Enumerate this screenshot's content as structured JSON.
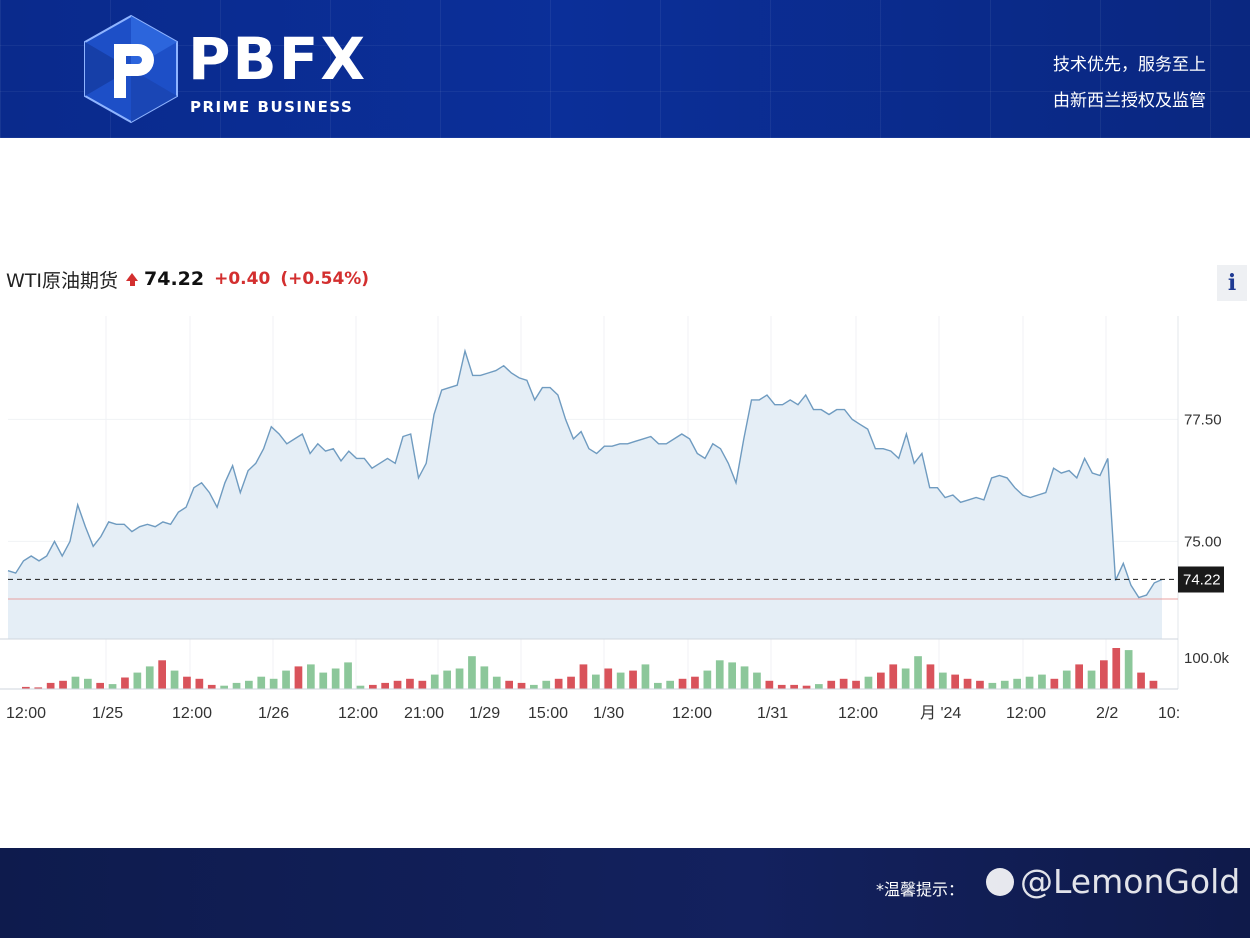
{
  "header": {
    "brand": "PBFX",
    "brand_sub": "PRIME BUSINESS",
    "slogan_line1": "技术优先，服务至上",
    "slogan_line2": "由新西兰授权及监管"
  },
  "quote": {
    "name": "WTI原油期货",
    "price": "74.22",
    "change": "+0.40",
    "change_pct": "(+0.54%)",
    "info_label": "i"
  },
  "footer": {
    "tip": "*温馨提示：",
    "watermark": "@LemonGold"
  },
  "colors": {
    "price_line": "#6f9bc0",
    "area_fill": "#e5eef6",
    "up_volume": "#8cc79a",
    "down_volume": "#d9535b",
    "prev_close": "#e8a0a0",
    "accent_red": "#d32f2f"
  },
  "chart_data": {
    "type": "area",
    "x_ticks": [
      "12:00",
      "1/25",
      "12:00",
      "1/26",
      "12:00",
      "21:00",
      "1/29",
      "15:00",
      "1/30",
      "12:00",
      "1/31",
      "12:00",
      "月 '24",
      "12:00",
      "2/2",
      "10:"
    ],
    "y_ticks": [
      "77.50",
      "75.00"
    ],
    "y_tick_values": [
      77.5,
      75.0
    ],
    "current_label": "74.22",
    "current_value": 74.22,
    "previous_close": 73.82,
    "ylim": [
      73.0,
      79.7
    ],
    "series": [
      {
        "values": [
          74.4,
          74.35,
          74.6,
          74.7,
          74.6,
          74.7,
          75.0,
          74.7,
          75.0,
          75.75,
          75.3,
          74.9,
          75.1,
          75.4,
          75.35,
          75.35,
          75.2,
          75.3,
          75.35,
          75.3,
          75.4,
          75.35,
          75.6,
          75.7,
          76.1,
          76.2,
          76.0,
          75.7,
          76.2,
          76.55,
          76.0,
          76.45,
          76.6,
          76.9,
          77.35,
          77.2,
          77.0,
          77.1,
          77.2,
          76.8,
          77.0,
          76.85,
          76.9,
          76.65,
          76.85,
          76.7,
          76.7,
          76.5,
          76.6,
          76.7,
          76.6,
          77.15,
          77.2,
          76.3,
          76.6,
          77.6,
          78.1,
          78.15,
          78.2,
          78.9,
          78.4,
          78.4,
          78.45,
          78.5,
          78.6,
          78.45,
          78.35,
          78.3,
          77.9,
          78.15,
          78.15,
          78.0,
          77.5,
          77.1,
          77.25,
          76.9,
          76.8,
          76.95,
          76.95,
          77.0,
          77.0,
          77.05,
          77.1,
          77.15,
          77.0,
          77.0,
          77.1,
          77.2,
          77.1,
          76.8,
          76.7,
          77.0,
          76.9,
          76.6,
          76.2,
          77.1,
          77.9,
          77.9,
          78.0,
          77.8,
          77.8,
          77.9,
          77.8,
          78.0,
          77.7,
          77.7,
          77.6,
          77.7,
          77.7,
          77.5,
          77.4,
          77.3,
          76.9,
          76.9,
          76.85,
          76.7,
          77.2,
          76.6,
          76.8,
          76.1,
          76.1,
          75.9,
          75.95,
          75.8,
          75.85,
          75.9,
          75.85,
          76.3,
          76.35,
          76.3,
          76.1,
          75.95,
          75.9,
          75.95,
          76.0,
          76.5,
          76.4,
          76.45,
          76.3,
          76.7,
          76.4,
          76.35,
          76.7,
          74.2,
          74.55,
          74.1,
          73.85,
          73.9,
          74.15,
          74.22
        ]
      }
    ],
    "volume_label": "100.0k",
    "volume_max": 100000,
    "volume": [
      {
        "v": 5000,
        "up": false
      },
      {
        "v": 4000,
        "up": false
      },
      {
        "v": 15000,
        "up": false
      },
      {
        "v": 20000,
        "up": false
      },
      {
        "v": 30000,
        "up": true
      },
      {
        "v": 25000,
        "up": true
      },
      {
        "v": 15000,
        "up": false
      },
      {
        "v": 12000,
        "up": true
      },
      {
        "v": 28000,
        "up": false
      },
      {
        "v": 40000,
        "up": true
      },
      {
        "v": 55000,
        "up": true
      },
      {
        "v": 70000,
        "up": false
      },
      {
        "v": 45000,
        "up": true
      },
      {
        "v": 30000,
        "up": false
      },
      {
        "v": 25000,
        "up": false
      },
      {
        "v": 10000,
        "up": false
      },
      {
        "v": 8000,
        "up": true
      },
      {
        "v": 15000,
        "up": true
      },
      {
        "v": 20000,
        "up": true
      },
      {
        "v": 30000,
        "up": true
      },
      {
        "v": 25000,
        "up": true
      },
      {
        "v": 45000,
        "up": true
      },
      {
        "v": 55000,
        "up": false
      },
      {
        "v": 60000,
        "up": true
      },
      {
        "v": 40000,
        "up": true
      },
      {
        "v": 50000,
        "up": true
      },
      {
        "v": 65000,
        "up": true
      },
      {
        "v": 8000,
        "up": true
      },
      {
        "v": 10000,
        "up": false
      },
      {
        "v": 15000,
        "up": false
      },
      {
        "v": 20000,
        "up": false
      },
      {
        "v": 25000,
        "up": false
      },
      {
        "v": 20000,
        "up": false
      },
      {
        "v": 35000,
        "up": true
      },
      {
        "v": 45000,
        "up": true
      },
      {
        "v": 50000,
        "up": true
      },
      {
        "v": 80000,
        "up": true
      },
      {
        "v": 55000,
        "up": true
      },
      {
        "v": 30000,
        "up": true
      },
      {
        "v": 20000,
        "up": false
      },
      {
        "v": 15000,
        "up": false
      },
      {
        "v": 10000,
        "up": true
      },
      {
        "v": 20000,
        "up": true
      },
      {
        "v": 25000,
        "up": false
      },
      {
        "v": 30000,
        "up": false
      },
      {
        "v": 60000,
        "up": false
      },
      {
        "v": 35000,
        "up": true
      },
      {
        "v": 50000,
        "up": false
      },
      {
        "v": 40000,
        "up": true
      },
      {
        "v": 45000,
        "up": false
      },
      {
        "v": 60000,
        "up": true
      },
      {
        "v": 15000,
        "up": true
      },
      {
        "v": 20000,
        "up": true
      },
      {
        "v": 25000,
        "up": false
      },
      {
        "v": 30000,
        "up": false
      },
      {
        "v": 45000,
        "up": true
      },
      {
        "v": 70000,
        "up": true
      },
      {
        "v": 65000,
        "up": true
      },
      {
        "v": 55000,
        "up": true
      },
      {
        "v": 40000,
        "up": true
      },
      {
        "v": 20000,
        "up": false
      },
      {
        "v": 10000,
        "up": false
      },
      {
        "v": 10000,
        "up": false
      },
      {
        "v": 8000,
        "up": false
      },
      {
        "v": 12000,
        "up": true
      },
      {
        "v": 20000,
        "up": false
      },
      {
        "v": 25000,
        "up": false
      },
      {
        "v": 20000,
        "up": false
      },
      {
        "v": 30000,
        "up": true
      },
      {
        "v": 40000,
        "up": false
      },
      {
        "v": 60000,
        "up": false
      },
      {
        "v": 50000,
        "up": true
      },
      {
        "v": 80000,
        "up": true
      },
      {
        "v": 60000,
        "up": false
      },
      {
        "v": 40000,
        "up": true
      },
      {
        "v": 35000,
        "up": false
      },
      {
        "v": 25000,
        "up": false
      },
      {
        "v": 20000,
        "up": false
      },
      {
        "v": 15000,
        "up": true
      },
      {
        "v": 20000,
        "up": true
      },
      {
        "v": 25000,
        "up": true
      },
      {
        "v": 30000,
        "up": true
      },
      {
        "v": 35000,
        "up": true
      },
      {
        "v": 25000,
        "up": false
      },
      {
        "v": 45000,
        "up": true
      },
      {
        "v": 60000,
        "up": false
      },
      {
        "v": 45000,
        "up": true
      },
      {
        "v": 70000,
        "up": false
      },
      {
        "v": 100000,
        "up": false
      },
      {
        "v": 95000,
        "up": true
      },
      {
        "v": 40000,
        "up": false
      },
      {
        "v": 20000,
        "up": false
      }
    ]
  }
}
